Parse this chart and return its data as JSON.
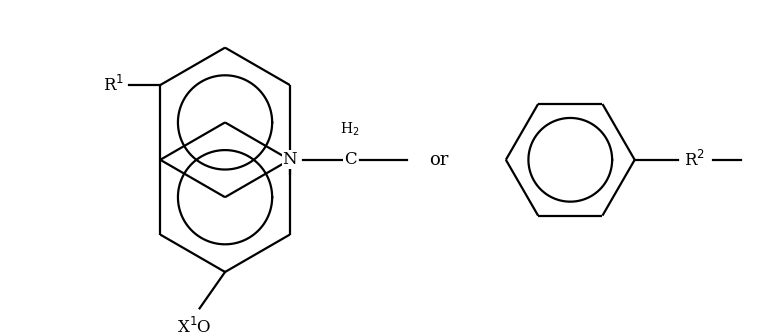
{
  "bg_color": "#ffffff",
  "line_color": "#000000",
  "line_width": 1.6,
  "inner_ring_scale": 0.63,
  "fig_width": 7.77,
  "fig_height": 3.34,
  "labels": {
    "R1": "R$^1$",
    "R2": "R$^2$",
    "X1O": "X$^1$O",
    "N": "N",
    "or": "or"
  },
  "font_size": 12
}
